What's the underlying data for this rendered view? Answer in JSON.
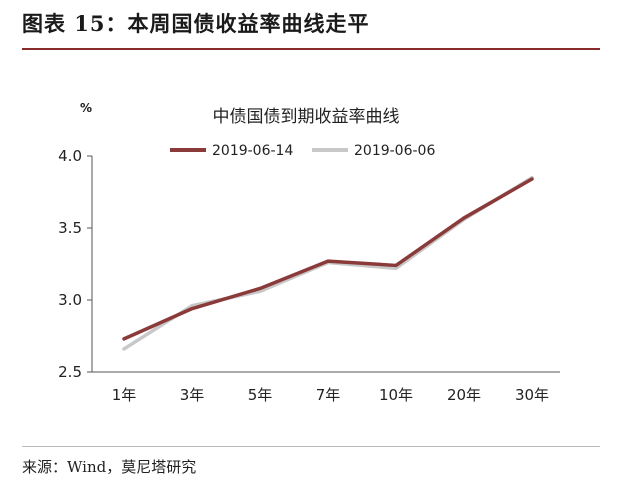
{
  "figure": {
    "title": "图表 15：本周国债收益率曲线走平",
    "source": "来源：Wind，莫尼塔研究"
  },
  "chart_data": {
    "type": "line",
    "title": "中债国债到期收益率曲线",
    "ylabel": "%",
    "xlabel": "",
    "categories": [
      "1年",
      "3年",
      "5年",
      "7年",
      "10年",
      "20年",
      "30年"
    ],
    "yticks": [
      "2.5",
      "3.0",
      "3.5",
      "4.0"
    ],
    "ylim": [
      2.5,
      4.0
    ],
    "grid": false,
    "legend": "top",
    "series": [
      {
        "name": "2019-06-14",
        "color": "#8b3a3a",
        "values": [
          2.73,
          2.94,
          3.08,
          3.27,
          3.24,
          3.57,
          3.84
        ]
      },
      {
        "name": "2019-06-06",
        "color": "#c8c8c8",
        "values": [
          2.66,
          2.96,
          3.06,
          3.26,
          3.22,
          3.56,
          3.85
        ]
      }
    ]
  }
}
